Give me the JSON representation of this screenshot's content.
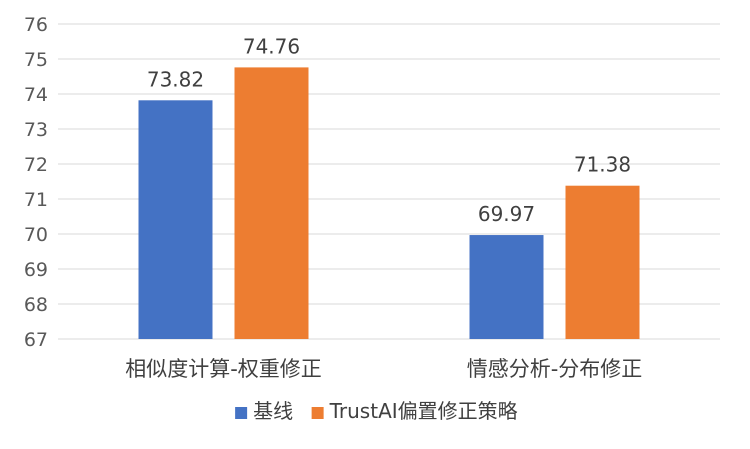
{
  "chart_data": {
    "type": "bar",
    "categories": [
      "相似度计算-权重修正",
      "情感分析-分布修正"
    ],
    "series": [
      {
        "name": "基线",
        "values": [
          73.82,
          69.97
        ],
        "color": "#4472C4"
      },
      {
        "name": "TrustAI偏置修正策略",
        "values": [
          74.76,
          71.38
        ],
        "color": "#ED7D31"
      }
    ],
    "ylim": [
      67,
      76
    ],
    "yticks": [
      67,
      68,
      69,
      70,
      71,
      72,
      73,
      74,
      75,
      76
    ],
    "grid": true,
    "legend_position": "bottom",
    "data_labels": [
      "73.82",
      "74.76",
      "69.97",
      "71.38"
    ]
  }
}
